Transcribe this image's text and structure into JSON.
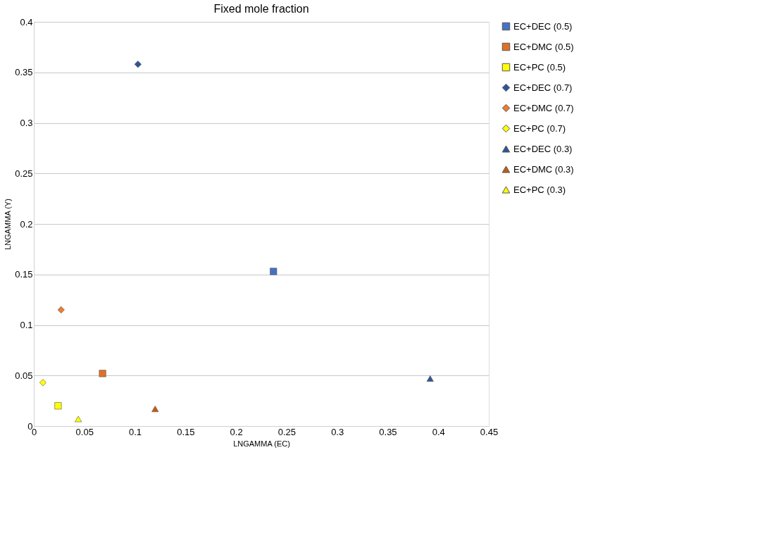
{
  "chart_data": {
    "type": "scatter",
    "title": "Fixed mole fraction",
    "xlabel": "LNGAMMA (EC)",
    "ylabel": "LNGAMMA (Y)",
    "xlim": [
      0,
      0.45
    ],
    "xticks": [
      0,
      0.05,
      0.1,
      0.15,
      0.2,
      0.25,
      0.3,
      0.35,
      0.4,
      0.45
    ],
    "ylim": [
      0,
      0.4
    ],
    "yticks": [
      0,
      0.05,
      0.1,
      0.15,
      0.2,
      0.25,
      0.3,
      0.35,
      0.4
    ],
    "grid": "y",
    "legend": "right",
    "series": [
      {
        "name": "EC+DEC (0.5)",
        "color": "#4472c4",
        "marker": "square",
        "x": [
          0.237
        ],
        "values": [
          0.153
        ]
      },
      {
        "name": "EC+DMC (0.5)",
        "color": "#e07028",
        "marker": "square",
        "x": [
          0.068
        ],
        "values": [
          0.052
        ]
      },
      {
        "name": "EC+PC (0.5)",
        "color": "#ffff00",
        "marker": "square",
        "x": [
          0.024
        ],
        "values": [
          0.02
        ]
      },
      {
        "name": "EC+DEC (0.7)",
        "color": "#2f5597",
        "marker": "diamond",
        "x": [
          0.103
        ],
        "values": [
          0.358
        ]
      },
      {
        "name": "EC+DMC (0.7)",
        "color": "#ed7d31",
        "marker": "diamond",
        "x": [
          0.027
        ],
        "values": [
          0.115
        ]
      },
      {
        "name": "EC+PC (0.7)",
        "color": "#ffff00",
        "marker": "diamond",
        "x": [
          0.009
        ],
        "values": [
          0.043
        ]
      },
      {
        "name": "EC+DEC (0.3)",
        "color": "#2f5597",
        "marker": "triangle",
        "x": [
          0.392
        ],
        "values": [
          0.047
        ]
      },
      {
        "name": "EC+DMC (0.3)",
        "color": "#c55a11",
        "marker": "triangle",
        "x": [
          0.12
        ],
        "values": [
          0.017
        ]
      },
      {
        "name": "EC+PC (0.3)",
        "color": "#ffff00",
        "marker": "triangle",
        "x": [
          0.044
        ],
        "values": [
          0.007
        ]
      }
    ]
  }
}
